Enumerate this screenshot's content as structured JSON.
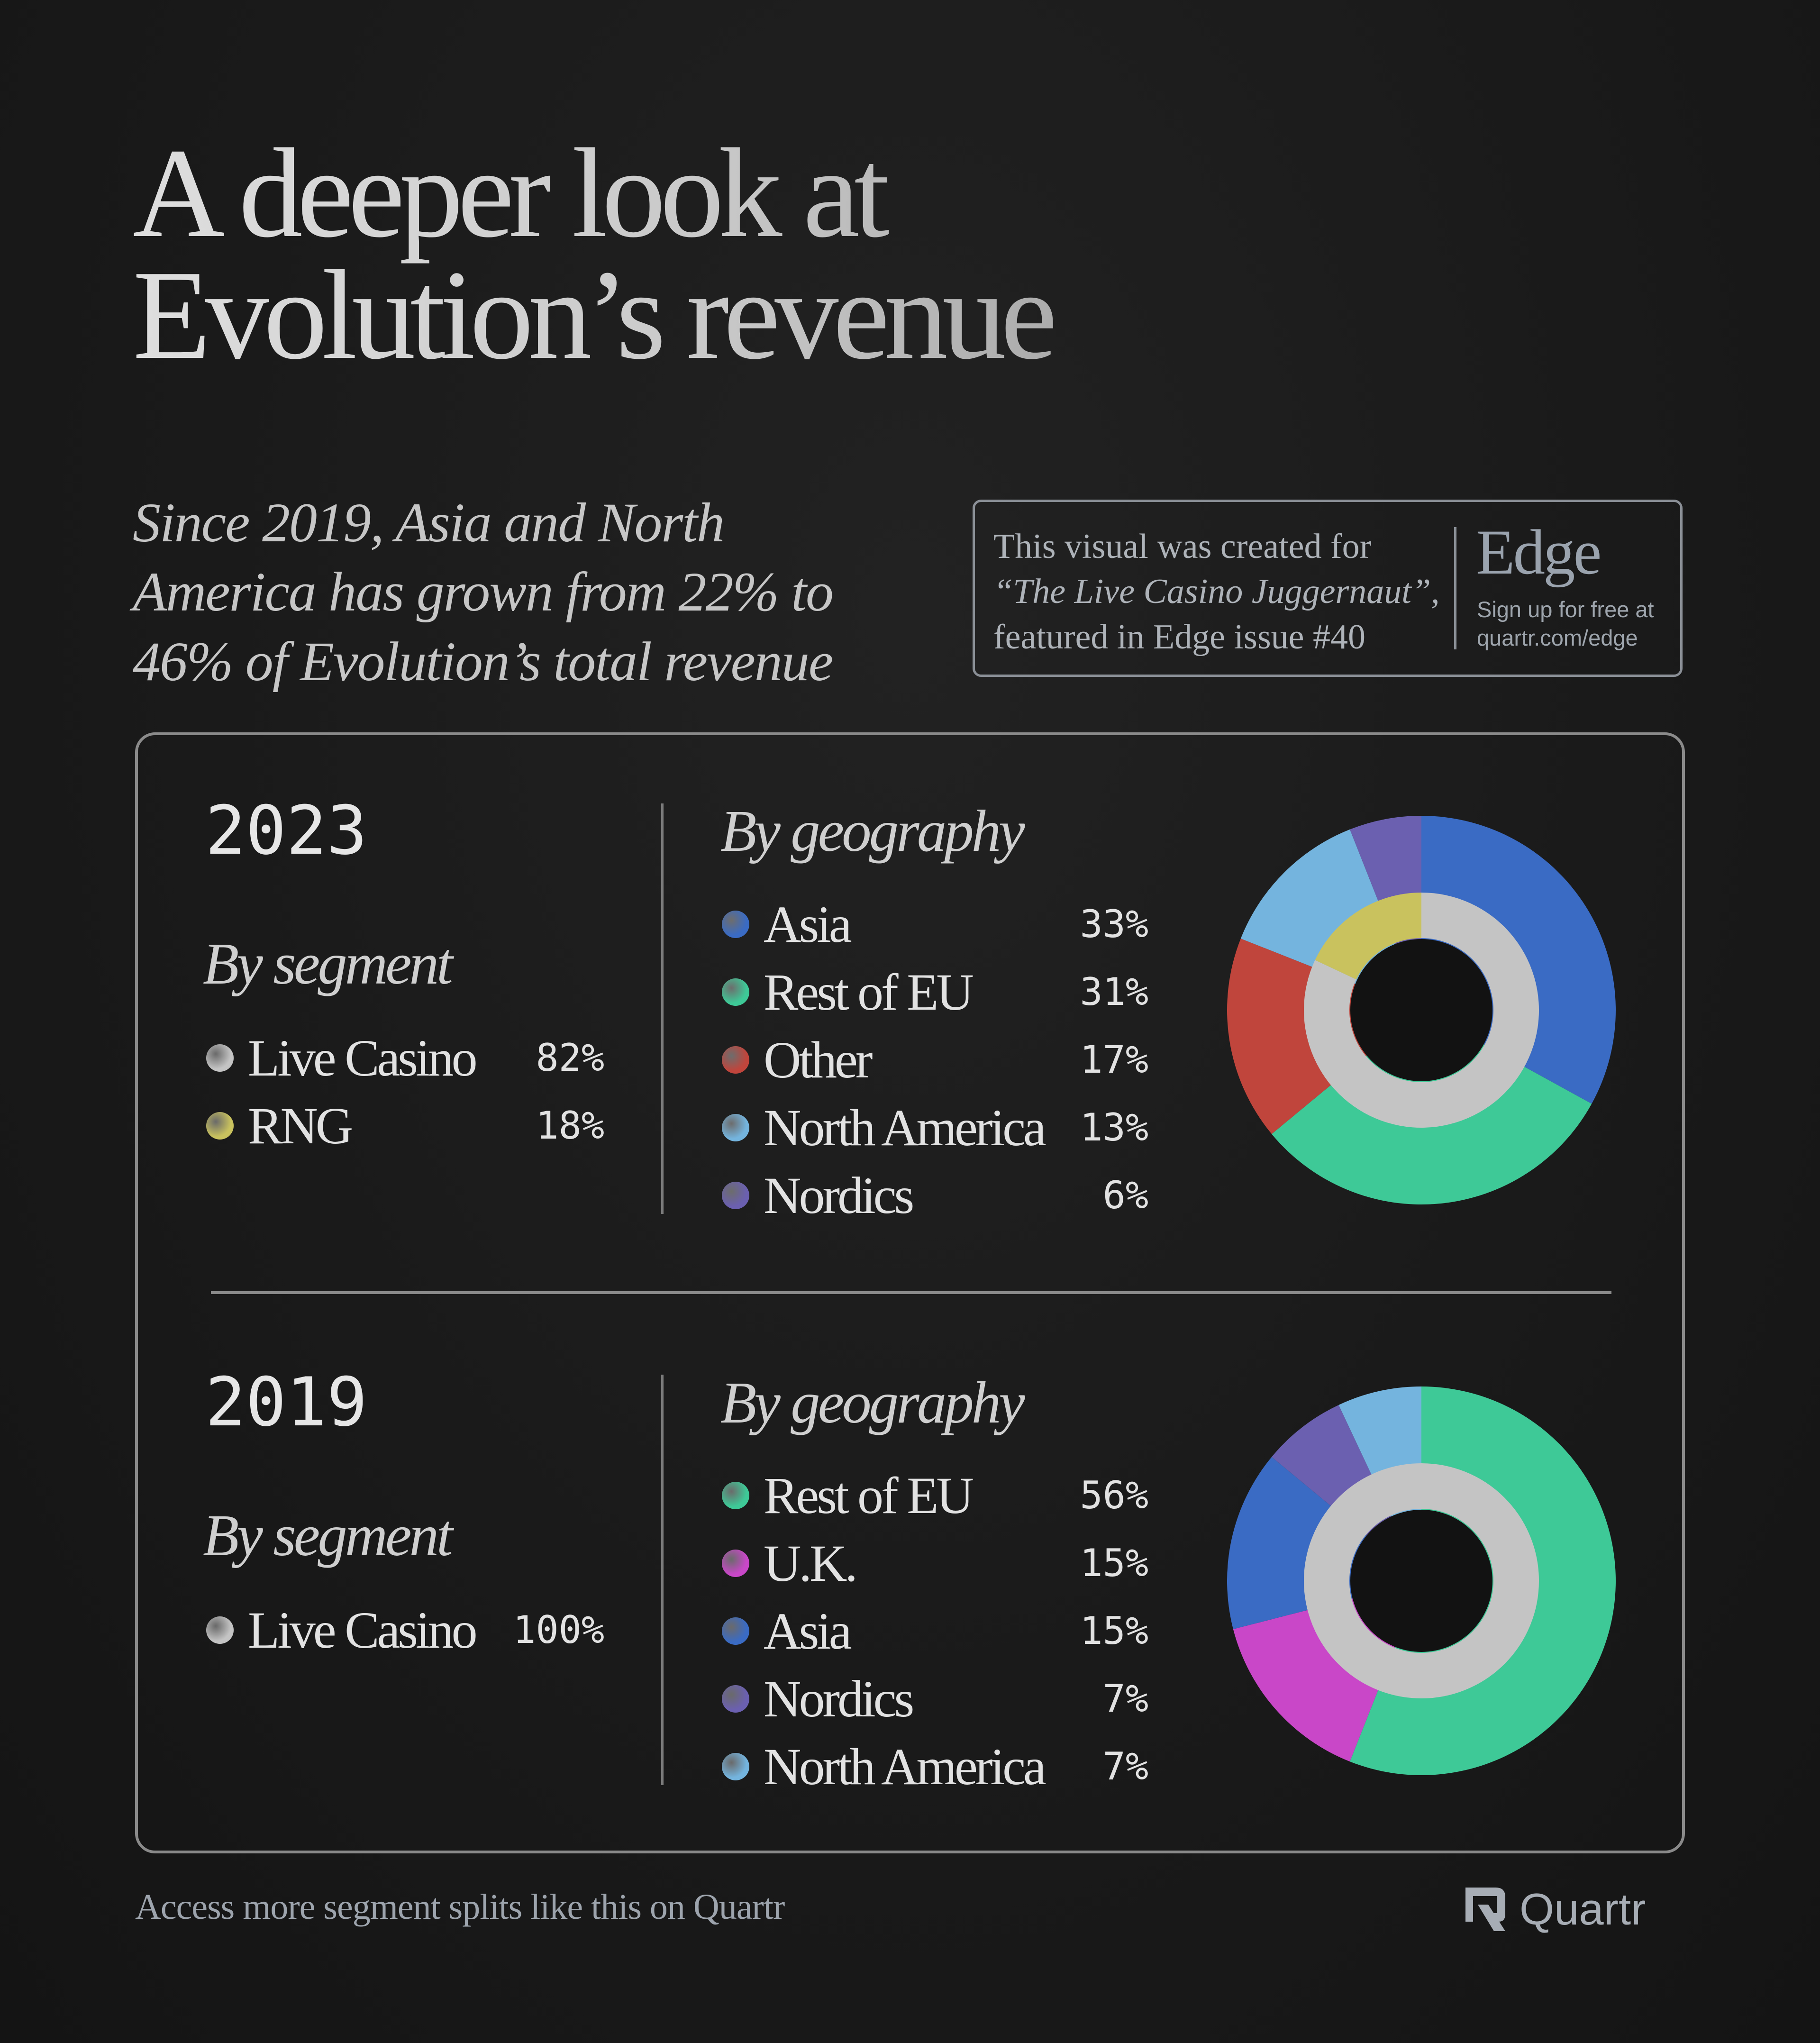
{
  "title": {
    "line1": "A deeper look at",
    "line2": "Evolution’s revenue"
  },
  "subtitle": {
    "line1": "Since 2019, Asia and North",
    "line2": "America has grown from 22% to",
    "line3": "46% of Evolution’s total revenue"
  },
  "edge_box": {
    "line1": "This visual was created for",
    "line2": "“The Live Casino Juggernaut”,",
    "line3": "featured in Edge issue #40",
    "logo": "Edge",
    "signup1": "Sign up for free at",
    "signup2": "quartr.com/edge"
  },
  "chart_data": [
    {
      "type": "pie",
      "year": "2023",
      "segment_heading": "By segment",
      "geography_heading": "By geography",
      "segments": [
        {
          "name": "Live Casino",
          "value": 82,
          "label": "82%",
          "color": "#c4c4c4"
        },
        {
          "name": "RNG",
          "value": 18,
          "label": "18%",
          "color": "#c9c25e"
        }
      ],
      "geography": [
        {
          "name": "Asia",
          "value": 33,
          "label": "33%",
          "color": "#3a6bc4"
        },
        {
          "name": "Rest of EU",
          "value": 31,
          "label": "31%",
          "color": "#3ec997"
        },
        {
          "name": "Other",
          "value": 17,
          "label": "17%",
          "color": "#c0453c"
        },
        {
          "name": "North America",
          "value": 13,
          "label": "13%",
          "color": "#74b4de"
        },
        {
          "name": "Nordics",
          "value": 6,
          "label": "6%",
          "color": "#6b60b0"
        }
      ]
    },
    {
      "type": "pie",
      "year": "2019",
      "segment_heading": "By segment",
      "geography_heading": "By geography",
      "segments": [
        {
          "name": "Live Casino",
          "value": 100,
          "label": "100%",
          "color": "#c4c4c4"
        }
      ],
      "geography": [
        {
          "name": "Rest of EU",
          "value": 56,
          "label": "56%",
          "color": "#3ec997"
        },
        {
          "name": "U.K.",
          "value": 15,
          "label": "15%",
          "color": "#c947c8"
        },
        {
          "name": "Asia",
          "value": 15,
          "label": "15%",
          "color": "#3a6bc4"
        },
        {
          "name": "Nordics",
          "value": 7,
          "label": "7%",
          "color": "#6b60b0"
        },
        {
          "name": "North America",
          "value": 7,
          "label": "7%",
          "color": "#74b4de"
        }
      ]
    }
  ],
  "footer": {
    "text": "Access more segment splits like this on Quartr",
    "logo": "Quartr"
  }
}
